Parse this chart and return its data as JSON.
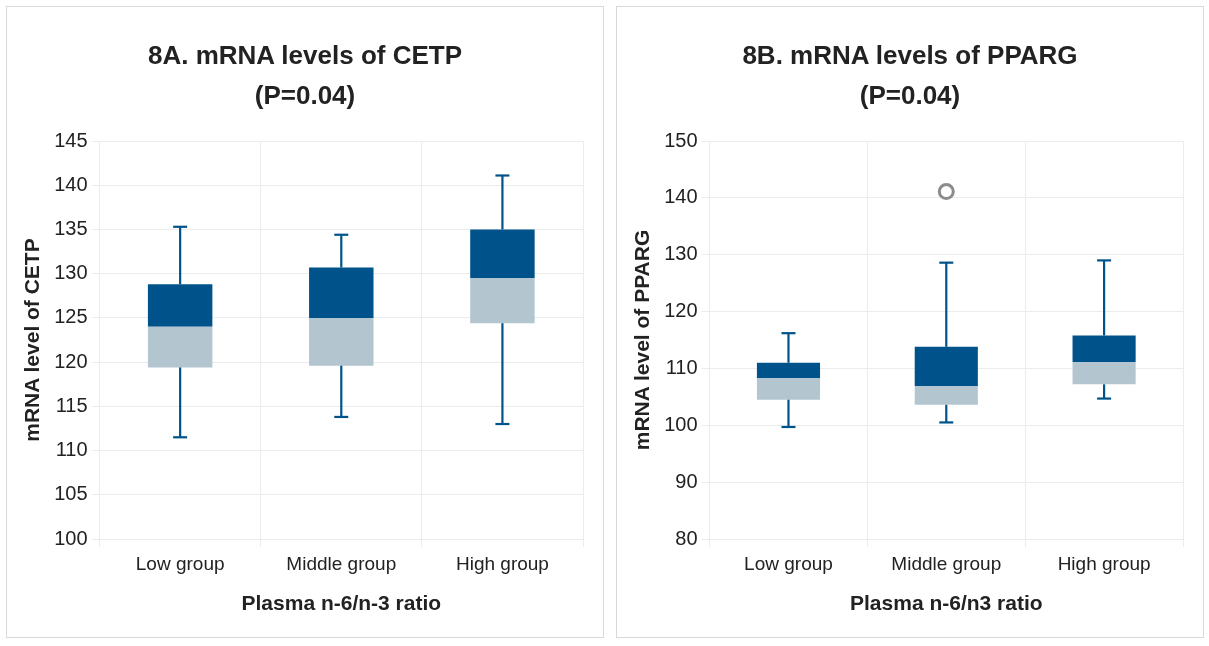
{
  "chart_data": [
    {
      "type": "box",
      "title": "8A. mRNA levels of CETP\n(P=0.04)",
      "xlabel": "Plasma n-6/n-3 ratio",
      "ylabel": "mRNA level of CETP",
      "categories": [
        "Low group",
        "Middle group",
        "High group"
      ],
      "series": [
        {
          "color": "#00538a",
          "colors": [
            "#b3c5cf",
            "#b3c5cf",
            "#b3c5cf"
          ],
          "boxes": [
            {
              "low": 111.5,
              "q1": 119.4,
              "median": 124.0,
              "q3": 128.8,
              "high": 135.3
            },
            {
              "low": 113.8,
              "q1": 119.6,
              "median": 125.0,
              "q3": 130.7,
              "high": 134.4
            },
            {
              "low": 113.0,
              "q1": 124.4,
              "median": 129.5,
              "q3": 135.0,
              "high": 141.1
            }
          ]
        }
      ],
      "ylim": [
        100,
        145
      ],
      "yticks": [
        100,
        105,
        110,
        115,
        120,
        125,
        130,
        135,
        140,
        145
      ],
      "grid": true
    },
    {
      "type": "box",
      "title": "8B. mRNA levels of PPARG\n(P=0.04)",
      "xlabel": "Plasma n-6/n3 ratio",
      "ylabel": "mRNA level of PPARG",
      "categories": [
        "Low group",
        "Middle group",
        "High group"
      ],
      "series": [
        {
          "color": "#00538a",
          "colors": [
            "#b3c5cf",
            "#b3c5cf",
            "#b3c5cf"
          ],
          "boxes": [
            {
              "low": 99.7,
              "q1": 104.5,
              "median": 108.3,
              "q3": 111.0,
              "high": 116.2
            },
            {
              "low": 100.5,
              "q1": 103.6,
              "median": 106.9,
              "q3": 113.8,
              "high": 128.6,
              "outliers": [
                141.1
              ]
            },
            {
              "low": 104.7,
              "q1": 107.2,
              "median": 111.1,
              "q3": 115.8,
              "high": 129.0
            }
          ]
        }
      ],
      "ylim": [
        80,
        150
      ],
      "yticks": [
        80,
        90,
        100,
        110,
        120,
        130,
        140,
        150
      ],
      "grid": true
    }
  ]
}
